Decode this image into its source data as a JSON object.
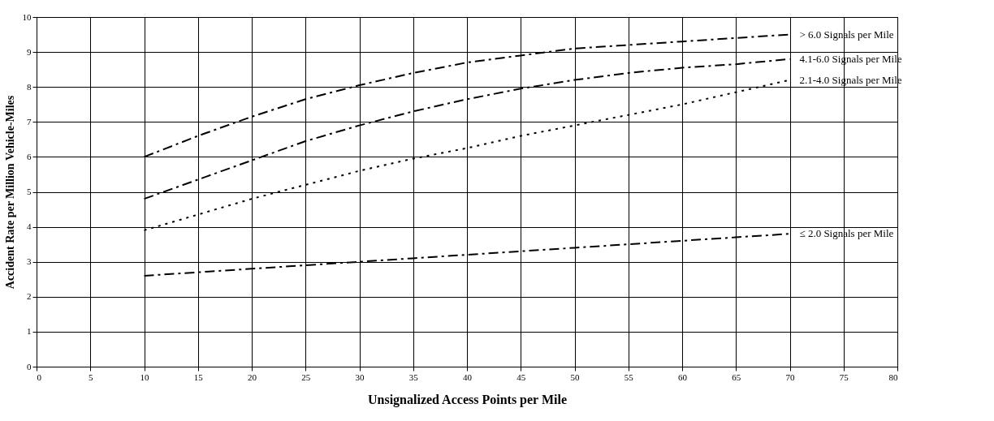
{
  "chart_data": {
    "type": "line",
    "xlabel": "Unsignalized Access Points per Mile",
    "ylabel": "Accident Rate per Million Vehicle-Miles",
    "x": [
      10,
      15,
      20,
      25,
      30,
      35,
      40,
      45,
      50,
      55,
      60,
      65,
      70
    ],
    "series": [
      {
        "name": "> 6.0 Signals per Mile",
        "color": "#000000",
        "line_style": "dashed",
        "values": [
          6.0,
          6.6,
          7.15,
          7.65,
          8.05,
          8.4,
          8.7,
          8.9,
          9.1,
          9.2,
          9.3,
          9.4,
          9.5
        ]
      },
      {
        "name": "4.1-6.0 Signals per Mile",
        "color": "#000000",
        "line_style": "dashed",
        "values": [
          4.8,
          5.35,
          5.9,
          6.45,
          6.9,
          7.3,
          7.65,
          7.95,
          8.2,
          8.4,
          8.55,
          8.65,
          8.8
        ]
      },
      {
        "name": "2.1-4.0 Signals per Mile",
        "color": "#000000",
        "line_style": "dotted",
        "values": [
          3.9,
          4.35,
          4.8,
          5.2,
          5.6,
          5.95,
          6.25,
          6.6,
          6.9,
          7.2,
          7.5,
          7.85,
          8.2
        ]
      },
      {
        "name": "≤ 2.0 Signals per Mile",
        "color": "#000000",
        "line_style": "dashed",
        "values": [
          2.6,
          2.7,
          2.8,
          2.9,
          3.0,
          3.1,
          3.2,
          3.3,
          3.4,
          3.5,
          3.6,
          3.7,
          3.8
        ]
      }
    ],
    "xlim": [
      0,
      80
    ],
    "xticks": [
      0,
      5,
      10,
      15,
      20,
      25,
      30,
      35,
      40,
      45,
      50,
      55,
      60,
      65,
      70,
      75,
      80
    ],
    "ylim": [
      0,
      10
    ],
    "yticks": [
      0,
      1,
      2,
      3,
      4,
      5,
      6,
      7,
      8,
      9,
      10
    ],
    "grid": true,
    "legend": false,
    "marker": "none"
  }
}
